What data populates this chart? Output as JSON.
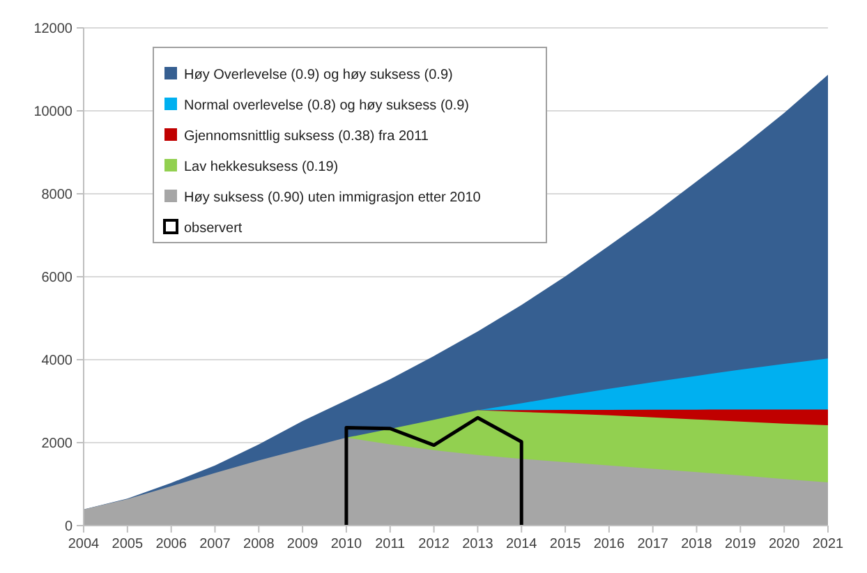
{
  "chart_data": {
    "type": "area",
    "x": [
      2004,
      2005,
      2006,
      2007,
      2008,
      2009,
      2010,
      2011,
      2012,
      2013,
      2014,
      2015,
      2016,
      2017,
      2018,
      2019,
      2020,
      2021
    ],
    "series": [
      {
        "name": "Høy Overlevelse (0.9) og høy suksess (0.9)",
        "color": "#365f91",
        "values": [
          390,
          650,
          1030,
          1450,
          1960,
          2520,
          3020,
          3530,
          4090,
          4680,
          5320,
          6010,
          6750,
          7500,
          8300,
          9100,
          9950,
          10870
        ]
      },
      {
        "name": "Normal overlevelse (0.8) og høy suksess (0.9)",
        "color": "#00b0f0",
        "values": [
          null,
          null,
          null,
          null,
          null,
          null,
          null,
          null,
          null,
          2780,
          2950,
          3130,
          3300,
          3460,
          3610,
          3760,
          3900,
          4030
        ]
      },
      {
        "name": "Gjennomsnittlig suksess (0.38) fra 2011",
        "color": "#c00000",
        "values": [
          null,
          null,
          null,
          null,
          null,
          null,
          null,
          null,
          null,
          2780,
          2785,
          2790,
          2790,
          2795,
          2795,
          2800,
          2800,
          2800
        ]
      },
      {
        "name": "Lav hekkesuksess (0.19)",
        "color": "#92d050",
        "values": [
          null,
          null,
          null,
          null,
          null,
          null,
          2120,
          2330,
          2550,
          2780,
          2740,
          2700,
          2660,
          2610,
          2560,
          2510,
          2460,
          2420
        ]
      },
      {
        "name": "Høy suksess (0.90) uten immigrasjon etter 2010",
        "color": "#a6a6a6",
        "values": [
          390,
          640,
          950,
          1270,
          1570,
          1850,
          2120,
          1960,
          1820,
          1700,
          1610,
          1530,
          1450,
          1370,
          1290,
          1210,
          1120,
          1040
        ]
      },
      {
        "name": "observert",
        "type": "line",
        "color": "#000000",
        "x": [
          2010,
          2010,
          2011,
          2012,
          2013,
          2014,
          2014
        ],
        "values": [
          0,
          2360,
          2340,
          1940,
          2600,
          2020,
          0
        ]
      }
    ],
    "xlim": [
      2004,
      2021
    ],
    "xticks": [
      2004,
      2005,
      2006,
      2007,
      2008,
      2009,
      2010,
      2011,
      2012,
      2013,
      2014,
      2015,
      2016,
      2017,
      2018,
      2019,
      2020,
      2021
    ],
    "ylim": [
      0,
      12000
    ],
    "yticks": [
      0,
      2000,
      4000,
      6000,
      8000,
      10000,
      12000
    ],
    "grid": "y",
    "legend": "top left"
  }
}
